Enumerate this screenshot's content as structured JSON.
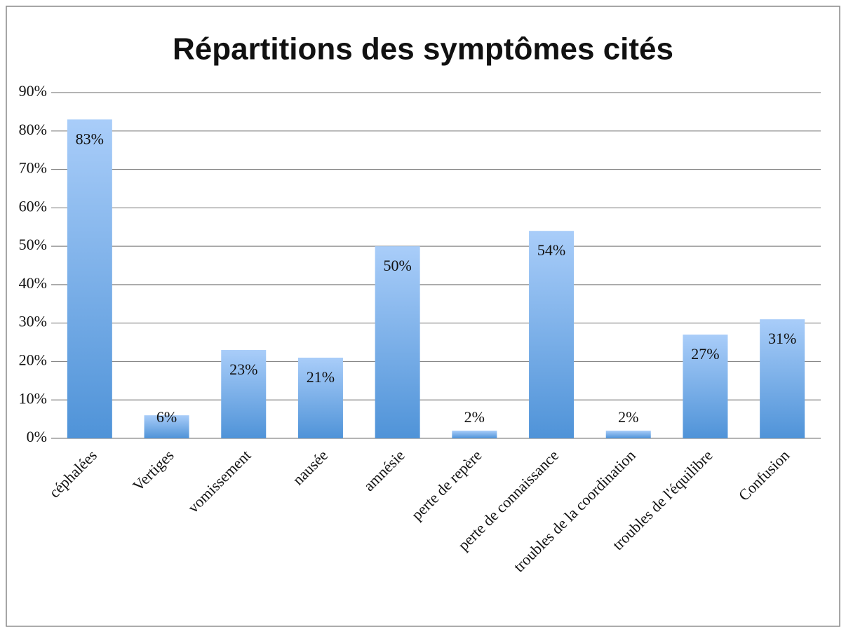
{
  "chart_data": {
    "type": "bar",
    "title": "Répartitions des symptômes cités",
    "categories": [
      "céphalées",
      "Vertiges",
      "vomissement",
      "nausée",
      "amnésie",
      "perte de repère",
      "perte de connaissance",
      "troubles de la coordination",
      "troubles de l'équilibre",
      "Confusion"
    ],
    "values": [
      83,
      6,
      23,
      21,
      50,
      2,
      54,
      2,
      27,
      31
    ],
    "value_labels": [
      "83%",
      "6%",
      "23%",
      "21%",
      "50%",
      "2%",
      "54%",
      "2%",
      "27%",
      "31%"
    ],
    "colors": [
      "#a9cdf9",
      "#4f93d8"
    ],
    "ylim": [
      0,
      90
    ],
    "yticks": [
      {
        "value": 0,
        "label": "0%"
      },
      {
        "value": 10,
        "label": "10%"
      },
      {
        "value": 20,
        "label": "20%"
      },
      {
        "value": 30,
        "label": "30%"
      },
      {
        "value": 40,
        "label": "40%"
      },
      {
        "value": 50,
        "label": "50%"
      },
      {
        "value": 60,
        "label": "60%"
      },
      {
        "value": 70,
        "label": "70%"
      },
      {
        "value": 80,
        "label": "80%"
      },
      {
        "value": 90,
        "label": "90%"
      }
    ],
    "grid": true
  }
}
